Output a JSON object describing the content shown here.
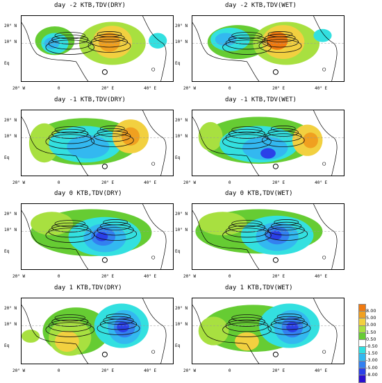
{
  "chart_data": {
    "type": "heatmap",
    "colorbar": {
      "levels": [
        "8.00",
        "5.00",
        "3.00",
        "1.50",
        "0.50",
        "-0.50",
        "-1.50",
        "-3.00",
        "-5.00",
        "-8.00"
      ],
      "colors": [
        "#f07a10",
        "#f0a020",
        "#f2d040",
        "#a8e040",
        "#66cc33",
        "#ffffff",
        "#33e0e0",
        "#33b8f0",
        "#3380f0",
        "#2a40e8",
        "#2a10d0"
      ]
    },
    "x_ticks": [
      "20° W",
      "0",
      "20° E",
      "40° E"
    ],
    "y_ticks": [
      "20° N",
      "10° N",
      "Eq"
    ],
    "panels": [
      {
        "title": "day -2 KTB,TDV(DRY)",
        "blobs": [
          {
            "c": "#66cc33",
            "cx": 0.22,
            "cy": 0.38,
            "rx": 0.13,
            "ry": 0.22
          },
          {
            "c": "#a8e040",
            "cx": 0.6,
            "cy": 0.42,
            "rx": 0.22,
            "ry": 0.33
          },
          {
            "c": "#33e0e0",
            "cx": 0.22,
            "cy": 0.42,
            "rx": 0.09,
            "ry": 0.16
          },
          {
            "c": "#33b8f0",
            "cx": 0.2,
            "cy": 0.42,
            "rx": 0.05,
            "ry": 0.09
          },
          {
            "c": "#f2d040",
            "cx": 0.6,
            "cy": 0.4,
            "rx": 0.13,
            "ry": 0.25
          },
          {
            "c": "#f0a020",
            "cx": 0.58,
            "cy": 0.4,
            "rx": 0.07,
            "ry": 0.15
          },
          {
            "c": "#33e0e0",
            "cx": 0.9,
            "cy": 0.38,
            "rx": 0.06,
            "ry": 0.12
          }
        ]
      },
      {
        "title": "day -2 KTB,TDV(WET)",
        "blobs": [
          {
            "c": "#66cc33",
            "cx": 0.3,
            "cy": 0.4,
            "rx": 0.2,
            "ry": 0.26
          },
          {
            "c": "#a8e040",
            "cx": 0.62,
            "cy": 0.42,
            "rx": 0.22,
            "ry": 0.33
          },
          {
            "c": "#33e0e0",
            "cx": 0.25,
            "cy": 0.36,
            "rx": 0.13,
            "ry": 0.18
          },
          {
            "c": "#33b8f0",
            "cx": 0.22,
            "cy": 0.36,
            "rx": 0.07,
            "ry": 0.1
          },
          {
            "c": "#f2d040",
            "cx": 0.6,
            "cy": 0.4,
            "rx": 0.14,
            "ry": 0.26
          },
          {
            "c": "#f07a10",
            "cx": 0.56,
            "cy": 0.38,
            "rx": 0.07,
            "ry": 0.14
          },
          {
            "c": "#33e0e0",
            "cx": 0.86,
            "cy": 0.3,
            "rx": 0.06,
            "ry": 0.1
          }
        ]
      },
      {
        "title": "day -1 KTB,TDV(DRY)",
        "blobs": [
          {
            "c": "#66cc33",
            "cx": 0.42,
            "cy": 0.48,
            "rx": 0.36,
            "ry": 0.36
          },
          {
            "c": "#a8e040",
            "cx": 0.15,
            "cy": 0.5,
            "rx": 0.1,
            "ry": 0.3
          },
          {
            "c": "#33e0e0",
            "cx": 0.42,
            "cy": 0.52,
            "rx": 0.24,
            "ry": 0.28
          },
          {
            "c": "#33b8f0",
            "cx": 0.44,
            "cy": 0.56,
            "rx": 0.14,
            "ry": 0.18
          },
          {
            "c": "#f2d040",
            "cx": 0.72,
            "cy": 0.4,
            "rx": 0.12,
            "ry": 0.26
          },
          {
            "c": "#f0a020",
            "cx": 0.72,
            "cy": 0.4,
            "rx": 0.06,
            "ry": 0.14
          }
        ]
      },
      {
        "title": "day -1 KTB,TDV(WET)",
        "blobs": [
          {
            "c": "#66cc33",
            "cx": 0.44,
            "cy": 0.46,
            "rx": 0.38,
            "ry": 0.36
          },
          {
            "c": "#a8e040",
            "cx": 0.12,
            "cy": 0.4,
            "rx": 0.08,
            "ry": 0.22
          },
          {
            "c": "#33e0e0",
            "cx": 0.44,
            "cy": 0.52,
            "rx": 0.26,
            "ry": 0.28
          },
          {
            "c": "#33b8f0",
            "cx": 0.48,
            "cy": 0.58,
            "rx": 0.15,
            "ry": 0.18
          },
          {
            "c": "#2a40e8",
            "cx": 0.5,
            "cy": 0.66,
            "rx": 0.05,
            "ry": 0.08
          },
          {
            "c": "#f2d040",
            "cx": 0.76,
            "cy": 0.46,
            "rx": 0.1,
            "ry": 0.24
          },
          {
            "c": "#f0a020",
            "cx": 0.78,
            "cy": 0.46,
            "rx": 0.05,
            "ry": 0.12
          }
        ]
      },
      {
        "title": "day 0 KTB,TDV(DRY)",
        "blobs": [
          {
            "c": "#66cc33",
            "cx": 0.46,
            "cy": 0.44,
            "rx": 0.4,
            "ry": 0.36
          },
          {
            "c": "#a8e040",
            "cx": 0.2,
            "cy": 0.3,
            "rx": 0.14,
            "ry": 0.18
          },
          {
            "c": "#33e0e0",
            "cx": 0.55,
            "cy": 0.5,
            "rx": 0.24,
            "ry": 0.3
          },
          {
            "c": "#33b8f0",
            "cx": 0.55,
            "cy": 0.52,
            "rx": 0.14,
            "ry": 0.22
          },
          {
            "c": "#3380f0",
            "cx": 0.54,
            "cy": 0.5,
            "rx": 0.08,
            "ry": 0.14
          },
          {
            "c": "#2a40e8",
            "cx": 0.53,
            "cy": 0.5,
            "rx": 0.04,
            "ry": 0.07
          }
        ]
      },
      {
        "title": "day 0 KTB,TDV(WET)",
        "blobs": [
          {
            "c": "#66cc33",
            "cx": 0.44,
            "cy": 0.42,
            "rx": 0.42,
            "ry": 0.34
          },
          {
            "c": "#a8e040",
            "cx": 0.2,
            "cy": 0.3,
            "rx": 0.16,
            "ry": 0.18
          },
          {
            "c": "#33e0e0",
            "cx": 0.56,
            "cy": 0.48,
            "rx": 0.24,
            "ry": 0.3
          },
          {
            "c": "#33b8f0",
            "cx": 0.56,
            "cy": 0.5,
            "rx": 0.14,
            "ry": 0.22
          },
          {
            "c": "#3380f0",
            "cx": 0.56,
            "cy": 0.48,
            "rx": 0.08,
            "ry": 0.14
          },
          {
            "c": "#2a40e8",
            "cx": 0.55,
            "cy": 0.48,
            "rx": 0.04,
            "ry": 0.07
          }
        ]
      },
      {
        "title": "day 1 KTB,TDV(DRY)",
        "blobs": [
          {
            "c": "#66cc33",
            "cx": 0.36,
            "cy": 0.5,
            "rx": 0.22,
            "ry": 0.36
          },
          {
            "c": "#a8e040",
            "cx": 0.32,
            "cy": 0.6,
            "rx": 0.14,
            "ry": 0.28
          },
          {
            "c": "#f2d040",
            "cx": 0.3,
            "cy": 0.66,
            "rx": 0.08,
            "ry": 0.16
          },
          {
            "c": "#33e0e0",
            "cx": 0.66,
            "cy": 0.42,
            "rx": 0.18,
            "ry": 0.34
          },
          {
            "c": "#33b8f0",
            "cx": 0.68,
            "cy": 0.44,
            "rx": 0.11,
            "ry": 0.26
          },
          {
            "c": "#3380f0",
            "cx": 0.68,
            "cy": 0.44,
            "rx": 0.07,
            "ry": 0.16
          },
          {
            "c": "#2a40e8",
            "cx": 0.67,
            "cy": 0.44,
            "rx": 0.04,
            "ry": 0.08
          },
          {
            "c": "#a8e040",
            "cx": 0.06,
            "cy": 0.58,
            "rx": 0.06,
            "ry": 0.1
          }
        ]
      },
      {
        "title": "day 1 KTB,TDV(WET)",
        "blobs": [
          {
            "c": "#66cc33",
            "cx": 0.4,
            "cy": 0.46,
            "rx": 0.34,
            "ry": 0.36
          },
          {
            "c": "#a8e040",
            "cx": 0.14,
            "cy": 0.5,
            "rx": 0.1,
            "ry": 0.22
          },
          {
            "c": "#f2d040",
            "cx": 0.36,
            "cy": 0.66,
            "rx": 0.08,
            "ry": 0.14
          },
          {
            "c": "#33e0e0",
            "cx": 0.64,
            "cy": 0.42,
            "rx": 0.2,
            "ry": 0.34
          },
          {
            "c": "#33b8f0",
            "cx": 0.66,
            "cy": 0.44,
            "rx": 0.12,
            "ry": 0.26
          },
          {
            "c": "#3380f0",
            "cx": 0.66,
            "cy": 0.44,
            "rx": 0.07,
            "ry": 0.16
          },
          {
            "c": "#2a40e8",
            "cx": 0.66,
            "cy": 0.44,
            "rx": 0.04,
            "ry": 0.08
          }
        ]
      }
    ]
  }
}
